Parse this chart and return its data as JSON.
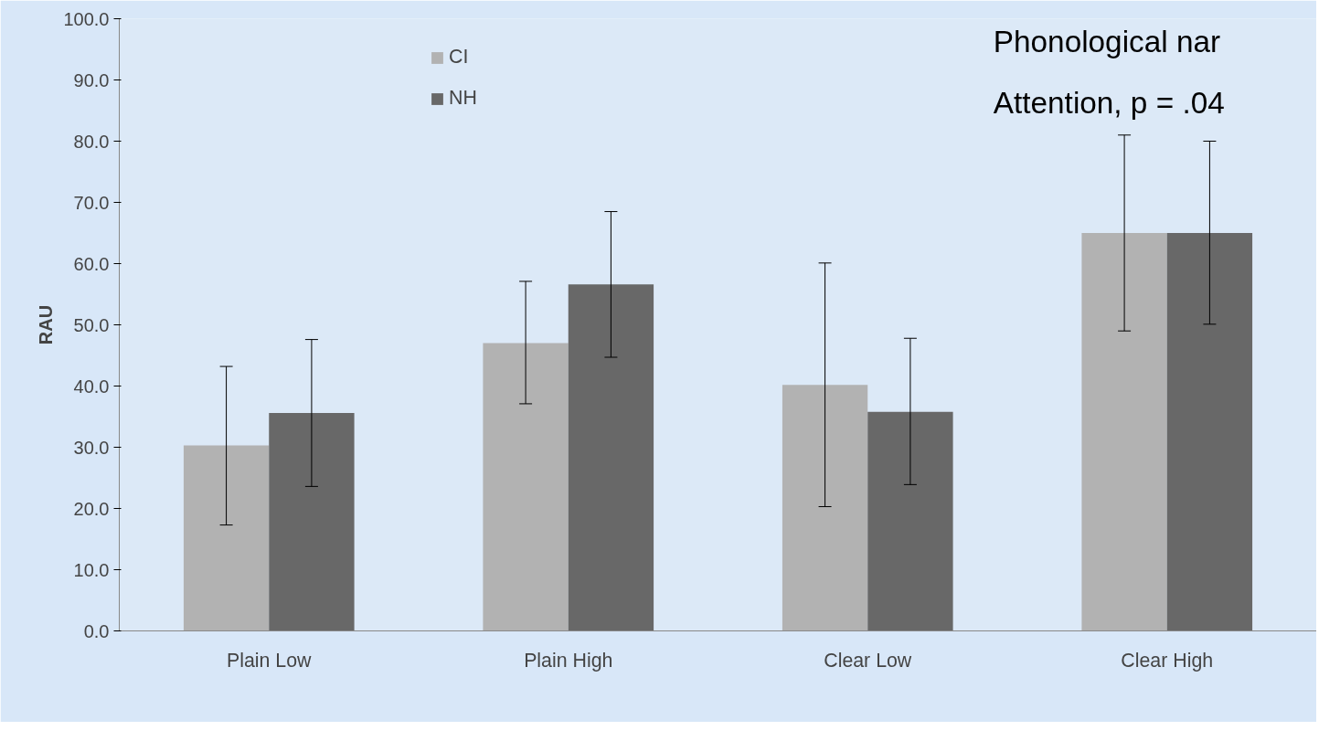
{
  "chart_data": {
    "type": "bar",
    "ylabel": "RAU",
    "categories": [
      "Plain Low",
      "Plain High",
      "Clear Low",
      "Clear High"
    ],
    "series": [
      {
        "name": "CI",
        "color": "#b2b2b2",
        "values": [
          30.3,
          47.0,
          40.2,
          65.0
        ],
        "errors": [
          [
            17.3,
            43.2
          ],
          [
            37.1,
            57.1
          ],
          [
            20.3,
            60.1
          ],
          [
            49.0,
            81.0
          ]
        ]
      },
      {
        "name": "NH",
        "color": "#686868",
        "values": [
          35.6,
          56.6,
          35.8,
          65.0
        ],
        "errors": [
          [
            23.6,
            47.6
          ],
          [
            44.7,
            68.5
          ],
          [
            23.9,
            47.8
          ],
          [
            50.1,
            80.0
          ]
        ]
      }
    ],
    "ylim": [
      0,
      100
    ],
    "yticks": [
      {
        "value": 0,
        "label": "0.0"
      },
      {
        "value": 10,
        "label": "10.0"
      },
      {
        "value": 20,
        "label": "20.0"
      },
      {
        "value": 30,
        "label": "30.0"
      },
      {
        "value": 40,
        "label": "40.0"
      },
      {
        "value": 50,
        "label": "50.0"
      },
      {
        "value": 60,
        "label": "60.0"
      },
      {
        "value": 70,
        "label": "70.0"
      },
      {
        "value": 80,
        "label": "80.0"
      },
      {
        "value": 90,
        "label": "90.0"
      },
      {
        "value": 100,
        "label": "100.0"
      }
    ],
    "annotations": [
      "Phonological nar",
      "Attention, p = .04"
    ],
    "grid": false,
    "legend": "top left"
  }
}
